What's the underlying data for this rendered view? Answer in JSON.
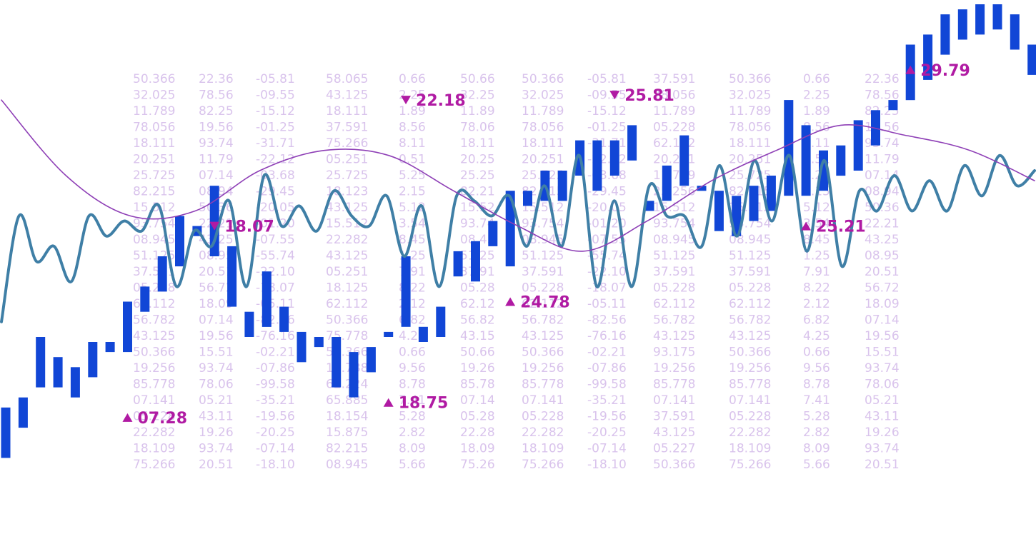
{
  "colors": {
    "background": "#ffffff",
    "bar": "#1146d6",
    "wave_line": "#3f7fa6",
    "smooth_curve": "#8e3fb6",
    "annotation": "#b01aa3",
    "background_numbers": "#d9c3ec"
  },
  "background_table": {
    "columns": [
      [
        "50.366",
        "32.025",
        "11.789",
        "78.056",
        "18.111",
        "20.251",
        "25.725",
        "82.215",
        "15.512",
        "93.754",
        "08.945",
        "51.125",
        "37.591",
        "05.228",
        "62.112",
        "56.782",
        "43.125",
        "50.366",
        "19.256",
        "85.778",
        "07.141",
        "05.228",
        "22.282",
        "18.109",
        "75.266"
      ],
      [
        "22.36",
        "78.56",
        "82.25",
        "19.56",
        "93.74",
        "11.79",
        "07.14",
        "08.94",
        "50.36",
        "22.21",
        "43.25",
        "08.95",
        "20.51",
        "56.72",
        "18.09",
        "07.14",
        "19.56",
        "15.51",
        "93.74",
        "78.06",
        "05.21",
        "43.11",
        "19.26",
        "93.74",
        "20.51"
      ],
      [
        "-05.81",
        "-09.55",
        "-15.12",
        "-01.25",
        "-31.71",
        "-22.12",
        "-03.68",
        "-29.45",
        "-20.05",
        "-01.20",
        "-07.55",
        "-55.74",
        "-22.10",
        "-18.07",
        "-05.11",
        "-82.56",
        "-76.16",
        "-02.21",
        "-07.86",
        "-99.58",
        "-35.21",
        "-19.56",
        "-20.25",
        "-07.14",
        "-18.10"
      ],
      [
        "58.065",
        "43.125",
        "18.111",
        "37.591",
        "75.266",
        "05.251",
        "25.725",
        "18.123",
        "43.125",
        "15.512",
        "22.282",
        "43.125",
        "05.251",
        "18.125",
        "62.112",
        "50.366",
        "75.778",
        "50.366",
        "11.788",
        "62.224",
        "65.885",
        "18.154",
        "15.875",
        "82.215",
        "08.945"
      ],
      [
        "0.66",
        "2.25",
        "1.89",
        "8.56",
        "8.11",
        "0.51",
        "5.25",
        "2.15",
        "5.12",
        "3.54",
        "8.45",
        "1.25",
        "7.91",
        "8.22",
        "2.12",
        "6.82",
        "4.25",
        "0.66",
        "9.56",
        "8.78",
        "7.41",
        "5.28",
        "2.82",
        "8.09",
        "5.66"
      ],
      [
        "50.66",
        "32.25",
        "11.89",
        "78.06",
        "18.11",
        "20.25",
        "25.25",
        "82.21",
        "15.52",
        "93.74",
        "08.45",
        "51.25",
        "37.91",
        "05.28",
        "62.12",
        "56.82",
        "43.15",
        "50.66",
        "19.26",
        "85.78",
        "07.14",
        "05.28",
        "22.28",
        "18.09",
        "75.26"
      ],
      [
        "50.366",
        "32.025",
        "11.789",
        "78.056",
        "18.111",
        "20.251",
        "25.725",
        "82.215",
        "15.512",
        "93.754",
        "08.945",
        "51.125",
        "37.591",
        "05.228",
        "62.112",
        "56.782",
        "43.125",
        "50.366",
        "19.256",
        "85.778",
        "07.141",
        "05.228",
        "22.282",
        "18.109",
        "75.266"
      ],
      [
        "-05.81",
        "-09.55",
        "-15.12",
        "-01.25",
        "-31.71",
        "-22.12",
        "-03.68",
        "-29.45",
        "-20.05",
        "-01.20",
        "-07.55",
        "-55.74",
        "-22.10",
        "-18.07",
        "-05.11",
        "-82.56",
        "-76.16",
        "-02.21",
        "-07.86",
        "-99.58",
        "-35.21",
        "-19.56",
        "-20.25",
        "-07.14",
        "-18.10"
      ],
      [
        "37.591",
        "78.056",
        "11.789",
        "05.228",
        "62.112",
        "20.251",
        "11.789",
        "25.256",
        "15.512",
        "93.754",
        "08.945",
        "51.125",
        "37.591",
        "05.228",
        "62.112",
        "56.782",
        "43.125",
        "93.175",
        "19.256",
        "85.778",
        "07.141",
        "37.591",
        "43.125",
        "05.227",
        "50.366"
      ],
      [
        "50.366",
        "32.025",
        "11.789",
        "78.056",
        "18.111",
        "20.251",
        "25.725",
        "82.215",
        "15.512",
        "93.754",
        "08.945",
        "51.125",
        "37.591",
        "05.228",
        "62.112",
        "56.782",
        "43.125",
        "50.366",
        "19.256",
        "85.778",
        "07.141",
        "05.228",
        "22.282",
        "18.109",
        "75.266"
      ],
      [
        "0.66",
        "2.25",
        "1.89",
        "8.56",
        "8.11",
        "0.51",
        "5.25",
        "2.15",
        "5.12",
        "3.54",
        "8.45",
        "1.25",
        "7.91",
        "8.22",
        "2.12",
        "6.82",
        "4.25",
        "0.66",
        "9.56",
        "8.78",
        "7.41",
        "5.28",
        "2.82",
        "8.09",
        "5.66"
      ],
      [
        "22.36",
        "78.56",
        "82.25",
        "19.56",
        "93.74",
        "11.79",
        "07.14",
        "08.94",
        "50.36",
        "22.21",
        "43.25",
        "08.95",
        "20.51",
        "56.72",
        "18.09",
        "07.14",
        "19.56",
        "15.51",
        "93.74",
        "78.06",
        "05.21",
        "43.11",
        "19.26",
        "93.74",
        "20.51"
      ]
    ]
  },
  "chart_data": {
    "type": "bar",
    "title": "",
    "xlabel": "",
    "ylabel": "",
    "axes_visible": false,
    "grid": false,
    "legend": "none",
    "ylim": [
      0,
      100
    ],
    "bars": [
      [
        10,
        20
      ],
      [
        16,
        22
      ],
      [
        24,
        34
      ],
      [
        24,
        30
      ],
      [
        22,
        28
      ],
      [
        26,
        33
      ],
      [
        31,
        33
      ],
      [
        31,
        41
      ],
      [
        39,
        44
      ],
      [
        43,
        50
      ],
      [
        48,
        58
      ],
      [
        54,
        56
      ],
      [
        50,
        64
      ],
      [
        40,
        52
      ],
      [
        34,
        39
      ],
      [
        36,
        47
      ],
      [
        35,
        40
      ],
      [
        29,
        35
      ],
      [
        32,
        34
      ],
      [
        24,
        34
      ],
      [
        22,
        31
      ],
      [
        27,
        32
      ],
      [
        34,
        35
      ],
      [
        36,
        50
      ],
      [
        33,
        36
      ],
      [
        34,
        40
      ],
      [
        46,
        51
      ],
      [
        45,
        53
      ],
      [
        52,
        57
      ],
      [
        48,
        63
      ],
      [
        60,
        63
      ],
      [
        61,
        67
      ],
      [
        61,
        67
      ],
      [
        66,
        73
      ],
      [
        63,
        73
      ],
      [
        66,
        73
      ],
      [
        69,
        76
      ],
      [
        59,
        61
      ],
      [
        61,
        68
      ],
      [
        64,
        74
      ],
      [
        63,
        64
      ],
      [
        55,
        63
      ],
      [
        54,
        62
      ],
      [
        57,
        64
      ],
      [
        59,
        66
      ],
      [
        62,
        81
      ],
      [
        62,
        76
      ],
      [
        63,
        71
      ],
      [
        66,
        72
      ],
      [
        67,
        77
      ],
      [
        72,
        79
      ],
      [
        79,
        81
      ],
      [
        81,
        92
      ],
      [
        85,
        94
      ],
      [
        90,
        98
      ],
      [
        93,
        99
      ],
      [
        94,
        100
      ],
      [
        95,
        100
      ],
      [
        91,
        98
      ],
      [
        86,
        92
      ]
    ],
    "series": [
      {
        "type": "line",
        "style": "oscillating",
        "values": [
          37,
          58,
          49,
          52,
          45,
          58,
          54,
          57,
          55,
          60,
          44,
          55,
          52,
          61,
          44,
          66,
          56,
          60,
          55,
          63,
          58,
          56,
          62,
          50,
          60,
          44,
          62,
          61,
          58,
          62,
          52,
          64,
          52,
          70,
          44,
          61,
          44,
          64,
          58,
          58,
          52,
          68,
          54,
          69,
          57,
          70,
          51,
          69,
          48,
          63,
          59,
          66,
          59,
          65,
          59,
          68,
          62,
          70,
          64,
          67
        ]
      },
      {
        "type": "line",
        "style": "smooth",
        "values": [
          81,
          66,
          58,
          59,
          67,
          71,
          70,
          63,
          56,
          51,
          57,
          65,
          71,
          76,
          74,
          71,
          65
        ]
      }
    ],
    "annotations": [
      {
        "label": "07.28",
        "direction": "up",
        "x": 7,
        "y": 18
      },
      {
        "label": "18.07",
        "direction": "down",
        "x": 12,
        "y": 56
      },
      {
        "label": "18.75",
        "direction": "up",
        "x": 22,
        "y": 21
      },
      {
        "label": "22.18",
        "direction": "down",
        "x": 23,
        "y": 81
      },
      {
        "label": "24.78",
        "direction": "up",
        "x": 29,
        "y": 41
      },
      {
        "label": "25.81",
        "direction": "down",
        "x": 35,
        "y": 82
      },
      {
        "label": "25.21",
        "direction": "up",
        "x": 46,
        "y": 56
      },
      {
        "label": "29.79",
        "direction": "up",
        "x": 52,
        "y": 87
      }
    ]
  }
}
